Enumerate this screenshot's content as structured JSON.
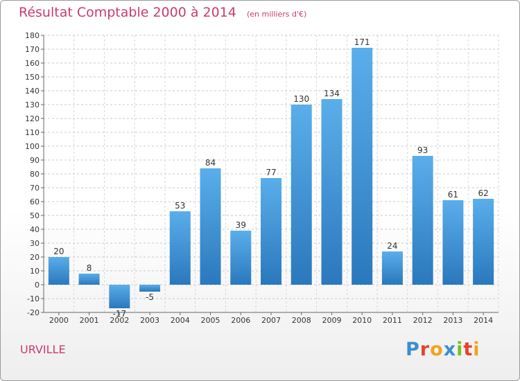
{
  "header": {
    "title": "Résultat Comptable 2000 à 2014",
    "subtitle": "(en milliers d'€)"
  },
  "footer": {
    "commune": "URVILLE",
    "logo_letters": [
      "P",
      "r",
      "o",
      "x",
      "i",
      "t",
      "i"
    ],
    "logo_colors": [
      "#3a8fd0",
      "#e8412c",
      "#f0a41c",
      "#3a8fd0",
      "#7bbf2a",
      "#e8412c",
      "#f0a41c"
    ]
  },
  "chart_data": {
    "type": "bar",
    "title": "Résultat Comptable 2000 à 2014",
    "subtitle": "(en milliers d'€)",
    "xlabel": "",
    "ylabel": "",
    "categories": [
      "2000",
      "2001",
      "2002",
      "2003",
      "2004",
      "2005",
      "2006",
      "2007",
      "2008",
      "2009",
      "2010",
      "2011",
      "2012",
      "2013",
      "2014"
    ],
    "values": [
      20,
      8,
      -17,
      -5,
      53,
      84,
      39,
      77,
      130,
      134,
      171,
      24,
      93,
      61,
      62
    ],
    "ylim": [
      -20,
      180
    ],
    "ytick_step": 10,
    "grid": true,
    "bar_color": "#3d8fd8",
    "legend": "none"
  }
}
